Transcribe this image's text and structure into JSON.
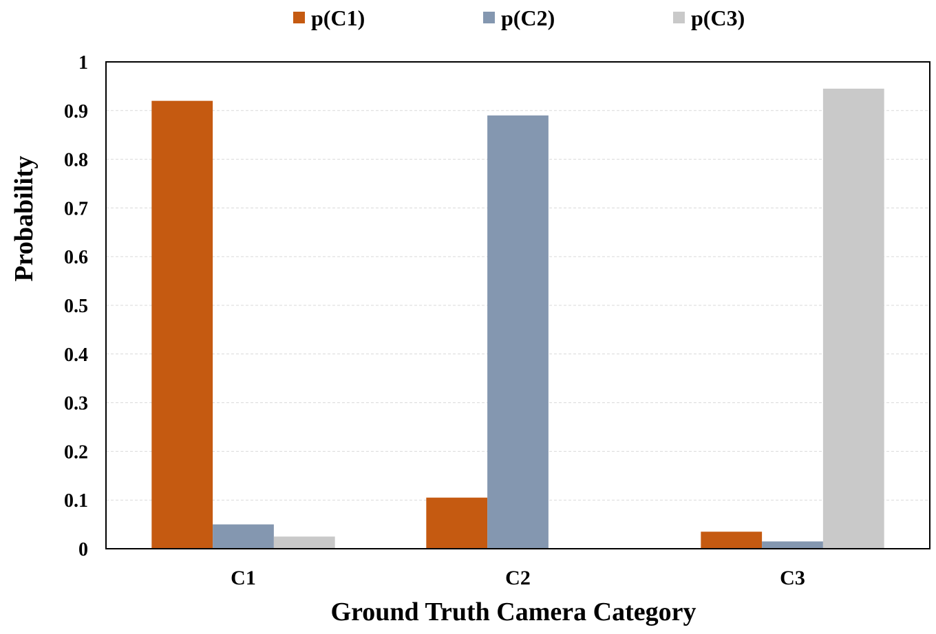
{
  "chart_data": {
    "type": "bar",
    "categories": [
      "C1",
      "C2",
      "C3"
    ],
    "series": [
      {
        "name": "p(C1)",
        "color": "#c55a11",
        "values": [
          0.92,
          0.105,
          0.035
        ]
      },
      {
        "name": "p(C2)",
        "color": "#8497b0",
        "values": [
          0.05,
          0.89,
          0.015
        ]
      },
      {
        "name": "p(C3)",
        "color": "#c9c9c9",
        "values": [
          0.025,
          0.0,
          0.945
        ]
      }
    ],
    "title": "",
    "xlabel": "Ground Truth Camera Category",
    "ylabel": "Probability",
    "ylim": [
      0,
      1
    ],
    "yticks": [
      "0",
      "0.1",
      "0.2",
      "0.3",
      "0.4",
      "0.5",
      "0.6",
      "0.7",
      "0.8",
      "0.9",
      "1"
    ],
    "grid": true,
    "legend_position": "top"
  }
}
